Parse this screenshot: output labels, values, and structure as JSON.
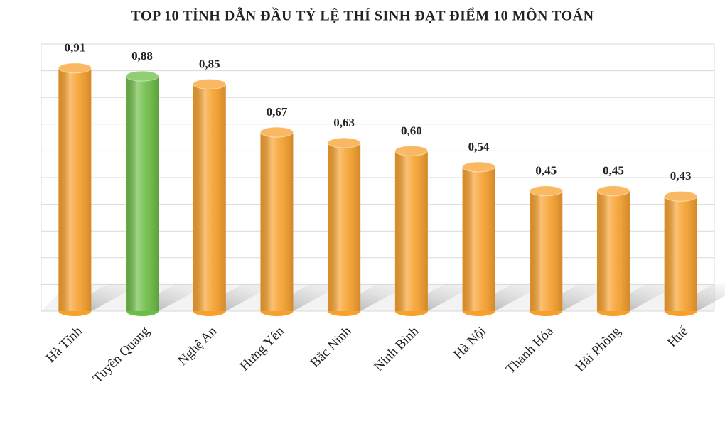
{
  "chart_data": {
    "type": "bar",
    "title": "TOP 10 TỈNH DẪN ĐẦU TỶ LỆ THÍ SINH ĐẠT ĐIỂM 10 MÔN TOÁN",
    "categories": [
      "Hà Tĩnh",
      "Tuyên Quang",
      "Nghệ An",
      "Hưng Yên",
      "Bắc Ninh",
      "Ninh Bình",
      "Hà Nội",
      "Thanh Hóa",
      "Hải Phòng",
      "Huế"
    ],
    "values": [
      0.91,
      0.88,
      0.85,
      0.67,
      0.63,
      0.6,
      0.54,
      0.45,
      0.45,
      0.43
    ],
    "value_labels": [
      "0,91",
      "0,88",
      "0,85",
      "0,67",
      "0,63",
      "0,60",
      "0,54",
      "0,45",
      "0,45",
      "0,43"
    ],
    "colors": [
      "#f7a02c",
      "#6cbd45",
      "#f7a02c",
      "#f7a02c",
      "#f7a02c",
      "#f7a02c",
      "#f7a02c",
      "#f7a02c",
      "#f7a02c",
      "#f7a02c"
    ],
    "ylim": [
      0,
      1
    ],
    "yticks": [
      0,
      0.1,
      0.2,
      0.3,
      0.4,
      0.5,
      0.6,
      0.7,
      0.8,
      0.9,
      1
    ],
    "grid": true
  }
}
